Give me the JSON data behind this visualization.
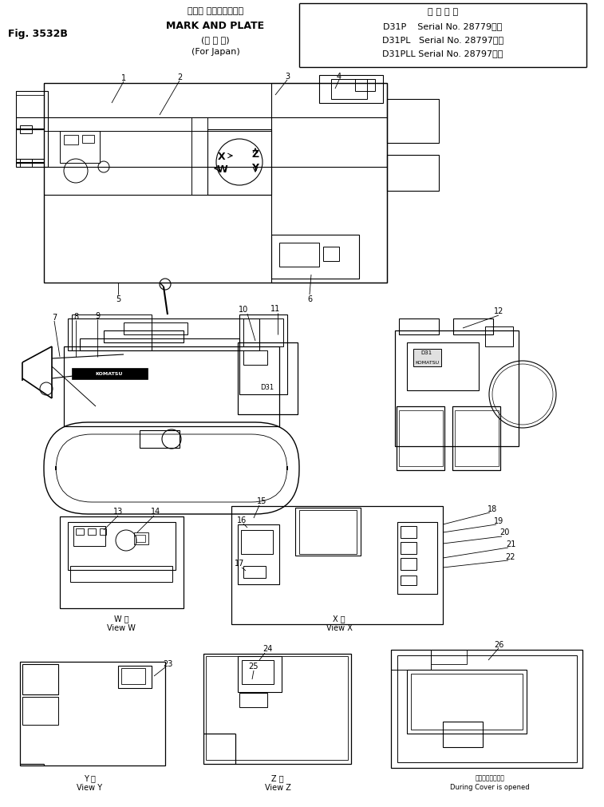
{
  "bg_color": "#ffffff",
  "title": {
    "fig": "Fig. 3532B",
    "jp1": "マーク およびプレート",
    "en": "MARK AND PLATE",
    "jp2": "(国 内 向)",
    "en2": "(For Japan)",
    "app_header": "適 用 号 機",
    "m1": "D31P    Serial No. 28779～）",
    "m2": "D31PL   Serial No. 28797～）",
    "m3": "D31PLL Serial No. 28797～）"
  }
}
